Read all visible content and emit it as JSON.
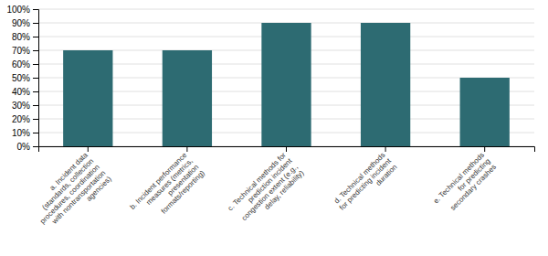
{
  "chart_data": {
    "type": "bar",
    "categories": [
      "a. Incident data\n(standards, collection\nprocedures, coordination\nwith nontransportation\nagencies)",
      "b. Incident performance\nmeasures (metrics,\npresentation\nformats/reporting)",
      "c. Technical methods for\nprediction incident\ncongestion extent (e.g.,\ndelay, reliability)",
      "d. Technical methods\nfor predicting incident\nduration",
      "e. Technical methods\nfor predicting\nsecondary crashes"
    ],
    "values": [
      0.7,
      0.7,
      0.9,
      0.9,
      0.5
    ],
    "color": "#2d6b72",
    "ylim": [
      0,
      1.0
    ],
    "yticks": [
      {
        "value": 0.0,
        "label": "0%"
      },
      {
        "value": 0.1,
        "label": "10%"
      },
      {
        "value": 0.2,
        "label": "20%"
      },
      {
        "value": 0.3,
        "label": "30%"
      },
      {
        "value": 0.4,
        "label": "40%"
      },
      {
        "value": 0.5,
        "label": "50%"
      },
      {
        "value": 0.6,
        "label": "60%"
      },
      {
        "value": 0.7,
        "label": "70%"
      },
      {
        "value": 0.8,
        "label": "80%"
      },
      {
        "value": 0.9,
        "label": "90%"
      },
      {
        "value": 1.0,
        "label": "100%"
      }
    ],
    "grid": true
  }
}
